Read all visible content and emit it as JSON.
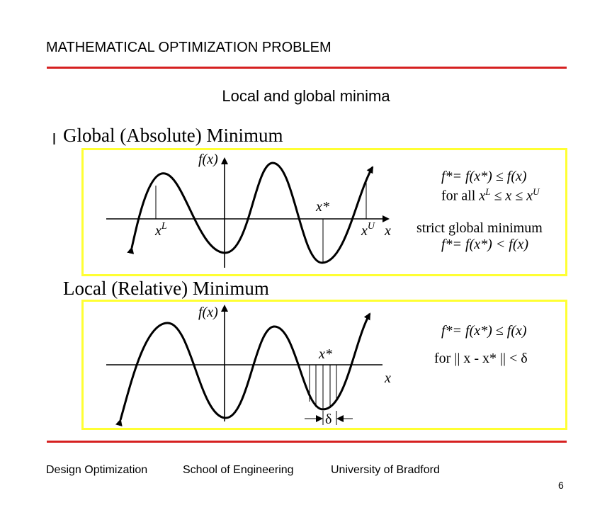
{
  "header": {
    "title": "MATHEMATICAL OPTIMIZATION PROBLEM"
  },
  "slide_title": "Local and global minima",
  "bullet": "l",
  "global": {
    "heading": "Global (Absolute) Minimum",
    "fx": "f(x)",
    "x_axis": "x",
    "xstar": "x*",
    "xl_base": "x",
    "xl_sup": "L",
    "xu_base": "x",
    "xu_sup": "U",
    "def_line1": "f*= f(x*) ≤ f(x)",
    "def_line2_a": "for all ",
    "def_line2_b": "x",
    "def_line2_c": "L",
    "def_line2_d": " ≤ x ≤ ",
    "def_line2_e": "x",
    "def_line2_f": "U",
    "strict_label": "strict global minimum",
    "strict_line": "f*= f(x*) < f(x)"
  },
  "local": {
    "heading": "Local (Relative) Minimum",
    "fx": "f(x)",
    "x_axis": "x",
    "xstar": "x*",
    "delta": "δ",
    "def_line1": "f*= f(x*) ≤ f(x)",
    "def_line2": "for || x - x* || < δ"
  },
  "footer": {
    "course": "Design Optimization",
    "school": "School of Engineering",
    "university": "University of Bradford",
    "page": "6"
  }
}
